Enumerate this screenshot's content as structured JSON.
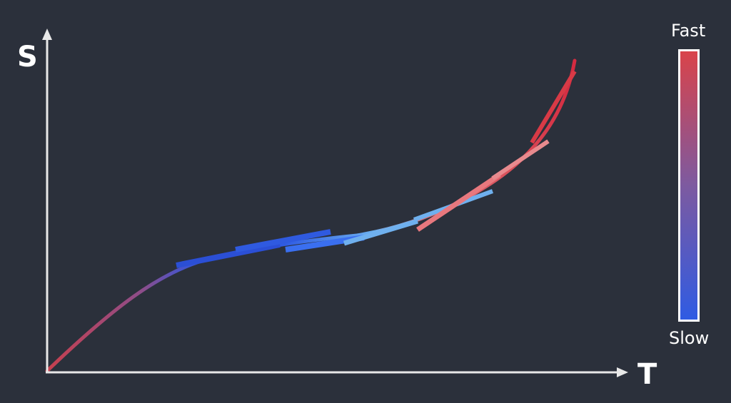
{
  "axes": {
    "y_label": "S",
    "x_label": "T",
    "axis_color": "#e8e8e8"
  },
  "legend": {
    "top_label": "Fast",
    "bottom_label": "Slow",
    "fast_color": "#d9434a",
    "mid_color": "#7d5aa0",
    "slow_color": "#2f5be3",
    "border_color": "#ffffff"
  },
  "curve": {
    "description_color_start": "#c8404e",
    "description_color_end": "#c8404e"
  },
  "tangent_lines": [
    {
      "name": "tangent-line-slow-left",
      "color": "#2b4fd6"
    },
    {
      "name": "tangent-line-slow-center",
      "color": "#2f5ae0"
    },
    {
      "name": "tangent-line-slow-right",
      "color": "#3a6ff0"
    },
    {
      "name": "tangent-line-light-blue-left",
      "color": "#6fb0ee"
    },
    {
      "name": "tangent-line-light-blue-right",
      "color": "#6fb0ee"
    },
    {
      "name": "tangent-line-pink",
      "color": "#e8787e"
    },
    {
      "name": "tangent-line-fast-upper",
      "color": "#e88a8e"
    },
    {
      "name": "tangent-line-fast-top",
      "color": "#d83a46"
    }
  ]
}
